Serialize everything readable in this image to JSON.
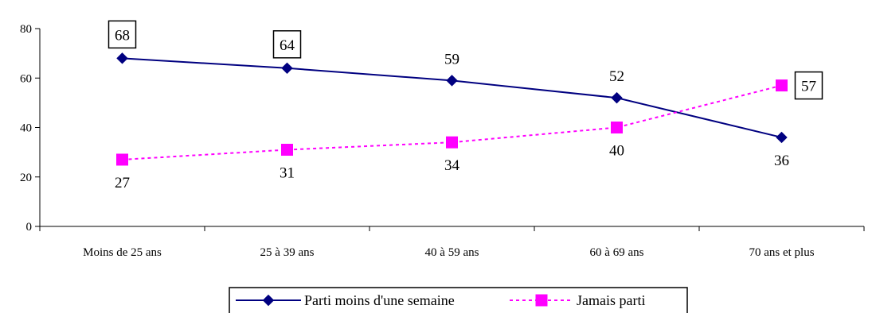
{
  "chart_data": {
    "type": "line",
    "categories": [
      "Moins de 25 ans",
      "25 à 39 ans",
      "40 à 59 ans",
      "60 à 69 ans",
      "70 ans et plus"
    ],
    "series": [
      {
        "name": "Parti moins d'une semaine",
        "values": [
          68,
          64,
          59,
          52,
          36
        ],
        "color": "#000080",
        "marker": "diamond",
        "line": "solid",
        "boxed_labels": [
          0,
          1
        ]
      },
      {
        "name": "Jamais parti",
        "values": [
          27,
          31,
          34,
          40,
          57
        ],
        "color": "#FF00FF",
        "marker": "square",
        "line": "dashed",
        "boxed_labels": [
          4
        ]
      }
    ],
    "ylim": [
      0,
      80
    ],
    "yticks": [
      0,
      20,
      40,
      60,
      80
    ],
    "grid": false,
    "legend": "bottom"
  }
}
